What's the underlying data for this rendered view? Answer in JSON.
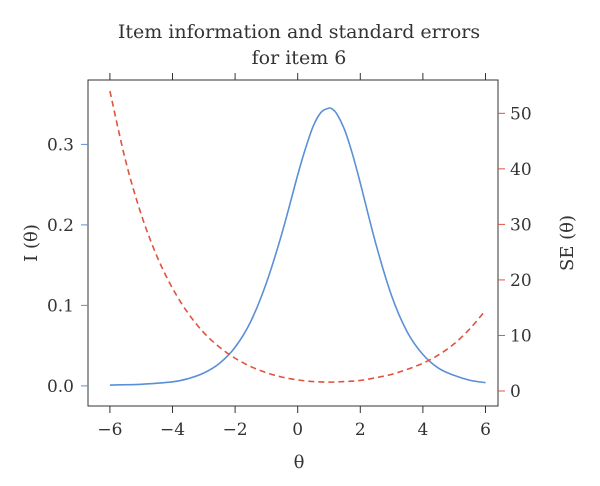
{
  "chart_data": {
    "type": "line",
    "title": [
      "Item information and standard errors",
      "for item 6"
    ],
    "xlabel": "θ",
    "ylabel_left": "I (θ)",
    "ylabel_right": "SE (θ)",
    "xlim": [
      -6.7,
      6.4
    ],
    "ylim_left": [
      -0.025,
      0.38
    ],
    "ylim_right": [
      -2.7,
      56
    ],
    "x_ticks": [
      -6,
      -4,
      -2,
      0,
      2,
      4,
      6
    ],
    "x_tick_labels": [
      "−6",
      "−4",
      "−2",
      "0",
      "2",
      "4",
      "6"
    ],
    "y_left_ticks": [
      0.0,
      0.1,
      0.2,
      0.3
    ],
    "y_left_tick_labels": [
      "0.0",
      "0.1",
      "0.2",
      "0.3"
    ],
    "y_right_ticks": [
      0,
      10,
      20,
      30,
      40,
      50
    ],
    "y_right_tick_labels": [
      "0",
      "10",
      "20",
      "30",
      "40",
      "50"
    ],
    "grid": false,
    "series": [
      {
        "role": "information",
        "axis": "left",
        "color": "#5b8fd6",
        "dash": "solid",
        "x": [
          -6,
          -5,
          -4,
          -3.5,
          -3,
          -2.5,
          -2,
          -1.5,
          -1,
          -0.5,
          0,
          0.25,
          0.5,
          0.75,
          1,
          1.1,
          1.25,
          1.5,
          1.75,
          2,
          2.5,
          3,
          3.5,
          4,
          4.5,
          5,
          5.5,
          6
        ],
        "y": [
          0.001,
          0.002,
          0.005,
          0.009,
          0.016,
          0.028,
          0.048,
          0.08,
          0.128,
          0.19,
          0.262,
          0.295,
          0.323,
          0.34,
          0.345,
          0.344,
          0.338,
          0.318,
          0.288,
          0.252,
          0.176,
          0.112,
          0.067,
          0.039,
          0.022,
          0.013,
          0.007,
          0.004
        ]
      },
      {
        "role": "standard-error",
        "axis": "right",
        "color": "#e0533d",
        "dash": "dashed",
        "x": [
          -6,
          -5.5,
          -5,
          -4.5,
          -4,
          -3.5,
          -3,
          -2.5,
          -2,
          -1.5,
          -1,
          -0.5,
          0,
          0.5,
          1,
          1.5,
          2,
          2.5,
          3,
          3.5,
          4,
          4.5,
          5,
          5.5,
          6
        ],
        "y": [
          54,
          41.5,
          31.8,
          24.3,
          18.5,
          14.0,
          10.5,
          7.9,
          5.9,
          4.4,
          3.3,
          2.5,
          2.0,
          1.7,
          1.6,
          1.7,
          1.9,
          2.4,
          3.0,
          3.9,
          5.0,
          6.5,
          8.5,
          11.2,
          14.5
        ]
      }
    ]
  }
}
